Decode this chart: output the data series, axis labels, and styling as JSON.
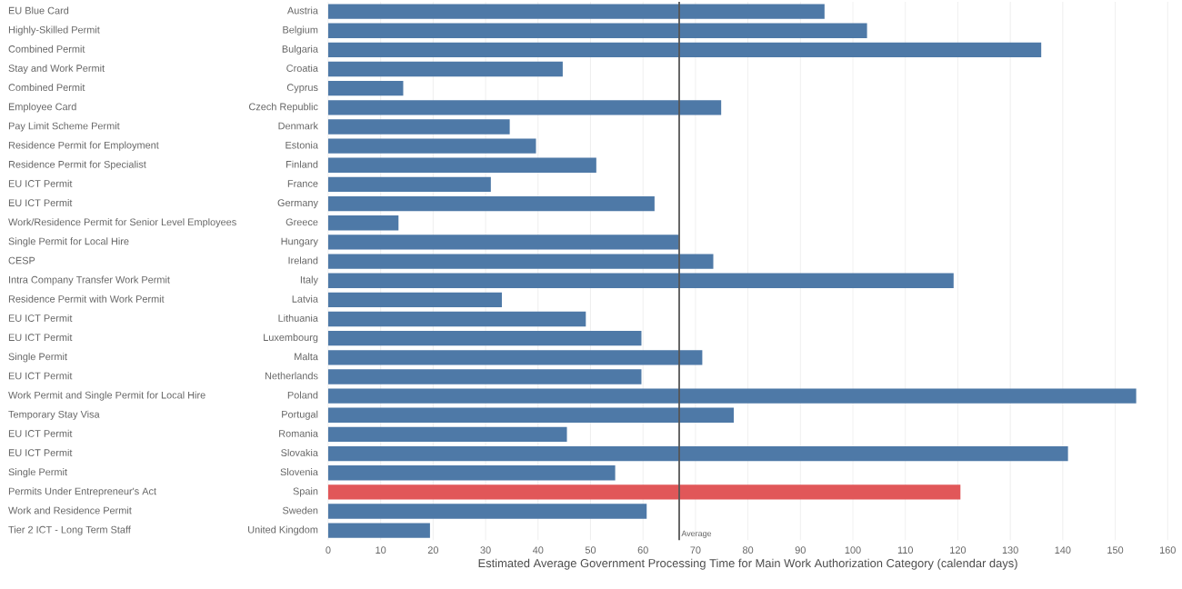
{
  "chart_data": {
    "type": "bar",
    "orientation": "horizontal",
    "xlabel": "Estimated Average Government Processing Time for Main Work Authorization Category (calendar days)",
    "categories": [
      "Austria",
      "Belgium",
      "Bulgaria",
      "Croatia",
      "Cyprus",
      "Czech Republic",
      "Denmark",
      "Estonia",
      "Finland",
      "France",
      "Germany",
      "Greece",
      "Hungary",
      "Ireland",
      "Italy",
      "Latvia",
      "Lithuania",
      "Luxembourg",
      "Malta",
      "Netherlands",
      "Poland",
      "Portugal",
      "Romania",
      "Slovakia",
      "Slovenia",
      "Spain",
      "Sweden",
      "United Kingdom"
    ],
    "values": [
      94.6,
      102.7,
      135.9,
      44.7,
      14.3,
      74.9,
      34.6,
      39.6,
      51.1,
      31.0,
      62.2,
      13.4,
      66.8,
      73.4,
      119.2,
      33.1,
      49.1,
      59.7,
      71.3,
      59.7,
      154.0,
      77.3,
      45.5,
      141.0,
      54.7,
      120.5,
      60.7,
      19.4
    ],
    "colors": [
      "#4e79a7",
      "#4e79a7",
      "#4e79a7",
      "#4e79a7",
      "#4e79a7",
      "#4e79a7",
      "#4e79a7",
      "#4e79a7",
      "#4e79a7",
      "#4e79a7",
      "#4e79a7",
      "#4e79a7",
      "#4e79a7",
      "#4e79a7",
      "#4e79a7",
      "#4e79a7",
      "#4e79a7",
      "#4e79a7",
      "#4e79a7",
      "#4e79a7",
      "#4e79a7",
      "#4e79a7",
      "#4e79a7",
      "#4e79a7",
      "#4e79a7",
      "#e15759",
      "#4e79a7",
      "#4e79a7"
    ],
    "annotations": [
      "EU Blue Card",
      "Highly-Skilled Permit",
      "Combined Permit",
      "Stay and Work Permit",
      "Combined Permit",
      "Employee Card",
      "Pay Limit Scheme Permit",
      "Residence Permit for Employment",
      "Residence Permit for Specialist",
      "EU ICT Permit",
      "EU ICT Permit",
      "Work/Residence Permit for Senior Level Employees",
      "Single Permit for Local Hire",
      "CESP",
      "Intra Company Transfer Work Permit",
      "Residence Permit with Work Permit",
      "EU ICT Permit",
      "EU ICT Permit",
      "Single Permit",
      "EU ICT Permit",
      "Work Permit and Single Permit for Local Hire",
      "Temporary Stay Visa",
      "EU ICT Permit",
      "EU ICT Permit",
      "Single Permit",
      "Permits Under Entrepreneur's Act",
      "Work and Residence Permit",
      "Tier 2 ICT - Long Term Staff"
    ],
    "xlim": [
      0,
      160
    ],
    "xticks": [
      0,
      10,
      20,
      30,
      40,
      50,
      60,
      70,
      80,
      90,
      100,
      110,
      120,
      130,
      140,
      150,
      160
    ],
    "ref_lines": [
      {
        "axis": "x",
        "value": 66.9,
        "label": "Average",
        "color": "#555555"
      }
    ],
    "grid": "x"
  }
}
